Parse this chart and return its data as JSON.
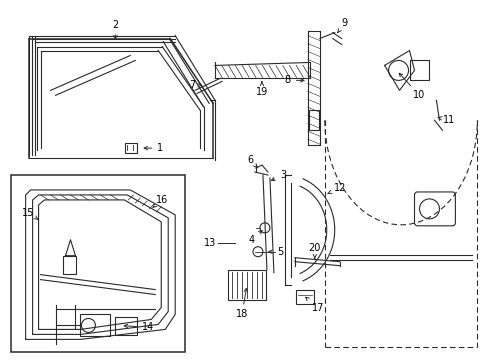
{
  "bg_color": "#ffffff",
  "line_color": "#2a2a2a",
  "fig_w": 4.89,
  "fig_h": 3.6,
  "dpi": 100
}
